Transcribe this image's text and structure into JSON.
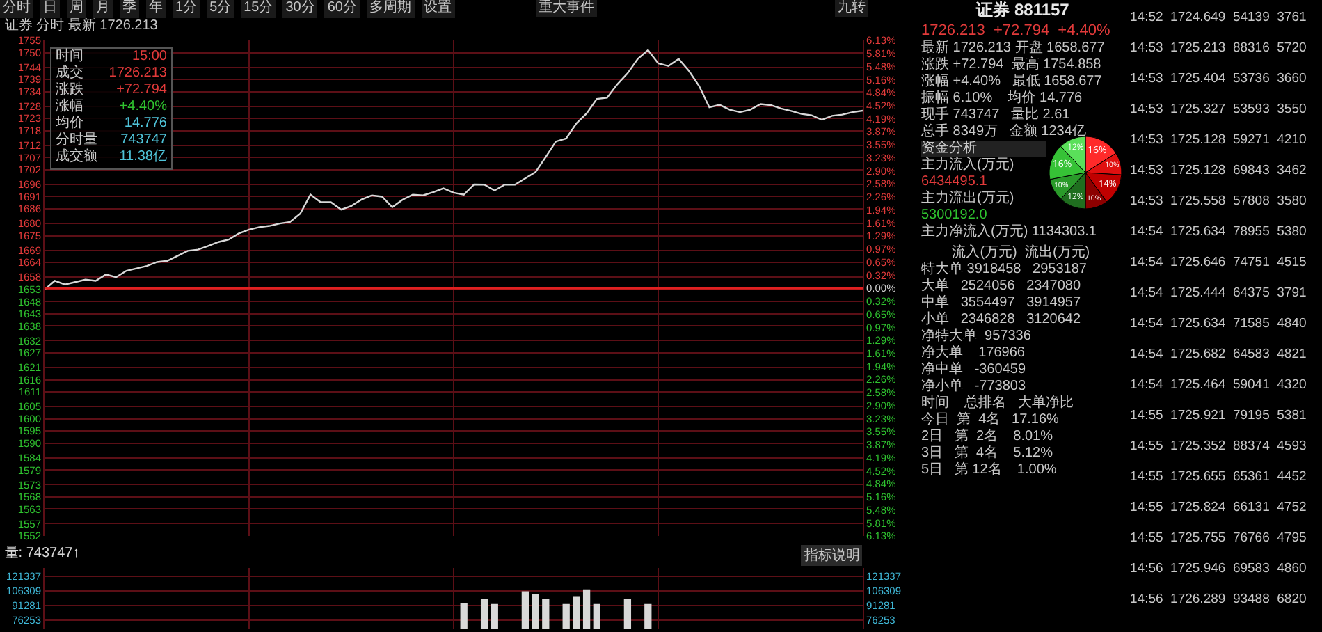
{
  "chart_data": [
    {
      "type": "line",
      "title": "证券 分时 最新 1726.213",
      "categories": [
        null,
        null,
        null,
        null,
        null,
        null,
        null,
        null,
        null,
        null,
        null,
        null,
        null,
        null,
        null,
        null,
        null,
        null,
        null,
        null,
        null,
        null,
        null,
        null,
        null,
        null,
        null,
        null,
        null,
        null,
        null,
        null,
        null,
        null,
        null,
        null,
        null,
        null,
        null,
        null,
        null,
        null,
        null,
        null,
        null,
        null,
        null,
        null,
        null,
        null,
        null,
        null,
        null,
        null,
        null,
        null,
        null,
        null,
        null,
        null,
        null,
        null,
        null,
        null,
        null,
        null,
        null,
        null,
        null,
        null,
        null,
        null,
        null,
        null,
        null,
        null,
        null,
        null,
        null,
        null,
        null
      ],
      "series": [
        {
          "color": "#d8d8d8",
          "values": [
            1652.9,
            1656.5,
            1655.0,
            1656.0,
            1657.0,
            1656.5,
            1659.1,
            1658.0,
            1660.6,
            1661.6,
            1662.6,
            1664.2,
            1664.7,
            1666.7,
            1668.8,
            1669.3,
            1670.8,
            1672.4,
            1673.4,
            1675.9,
            1677.5,
            1678.5,
            1679.0,
            1680.0,
            1680.6,
            1684.0,
            1691.8,
            1688.7,
            1688.7,
            1685.7,
            1687.2,
            1689.8,
            1691.5,
            1691.0,
            1686.7,
            1689.7,
            1691.8,
            1691.5,
            1692.8,
            1694.4,
            1692.6,
            1691.8,
            1696.0,
            1695.9,
            1693.5,
            1695.9,
            1695.9,
            1698.5,
            1701.0,
            1707.2,
            1713.6,
            1714.8,
            1721.0,
            1725.1,
            1731.0,
            1731.5,
            1737.0,
            1741.5,
            1747.4,
            1751.0,
            1745.6,
            1744.5,
            1747.4,
            1742.5,
            1736.3,
            1727.6,
            1728.6,
            1726.6,
            1725.6,
            1726.6,
            1728.9,
            1728.5,
            1727.1,
            1726.1,
            1724.9,
            1724.3,
            1722.5,
            1724.1,
            1724.6,
            1725.6,
            1726.2
          ]
        }
      ],
      "ylim": [
        1552,
        1755
      ],
      "yticks": [
        1552,
        1557,
        1563,
        1568,
        1573,
        1579,
        1584,
        1590,
        1595,
        1600,
        1605,
        1611,
        1616,
        1621,
        1627,
        1632,
        1638,
        1643,
        1648,
        1653,
        1658,
        1664,
        1669,
        1675,
        1680,
        1686,
        1691,
        1696,
        1702,
        1707,
        1712,
        1718,
        1723,
        1728,
        1734,
        1739,
        1744,
        1750,
        1755
      ],
      "y2lim": [
        -6.13,
        6.13
      ],
      "y2ticks": [
        {
          "value": -6.13,
          "label": "6.13%"
        },
        {
          "value": -5.81,
          "label": "5.81%"
        },
        {
          "value": -5.48,
          "label": "5.48%"
        },
        {
          "value": -5.16,
          "label": "5.16%"
        },
        {
          "value": -4.84,
          "label": "4.84%"
        },
        {
          "value": -4.52,
          "label": "4.52%"
        },
        {
          "value": -4.19,
          "label": "4.19%"
        },
        {
          "value": -3.87,
          "label": "3.87%"
        },
        {
          "value": -3.55,
          "label": "3.55%"
        },
        {
          "value": -3.23,
          "label": "3.23%"
        },
        {
          "value": -2.9,
          "label": "2.90%"
        },
        {
          "value": -2.58,
          "label": "2.58%"
        },
        {
          "value": -2.26,
          "label": "2.26%"
        },
        {
          "value": -1.94,
          "label": "1.94%"
        },
        {
          "value": -1.61,
          "label": "1.61%"
        },
        {
          "value": -1.29,
          "label": "1.29%"
        },
        {
          "value": -0.97,
          "label": "0.97%"
        },
        {
          "value": -0.65,
          "label": "0.65%"
        },
        {
          "value": -0.32,
          "label": "0.32%"
        },
        {
          "value": 0,
          "label": "0.00%"
        },
        {
          "value": 0.32,
          "label": "0.32%"
        },
        {
          "value": 0.65,
          "label": "0.65%"
        },
        {
          "value": 0.97,
          "label": "0.97%"
        },
        {
          "value": 1.29,
          "label": "1.29%"
        },
        {
          "value": 1.61,
          "label": "1.61%"
        },
        {
          "value": 1.94,
          "label": "1.94%"
        },
        {
          "value": 2.26,
          "label": "2.26%"
        },
        {
          "value": 2.58,
          "label": "2.58%"
        },
        {
          "value": 2.9,
          "label": "2.90%"
        },
        {
          "value": 3.23,
          "label": "3.23%"
        },
        {
          "value": 3.55,
          "label": "3.55%"
        },
        {
          "value": 3.87,
          "label": "3.87%"
        },
        {
          "value": 4.19,
          "label": "4.19%"
        },
        {
          "value": 4.52,
          "label": "4.52%"
        },
        {
          "value": 4.84,
          "label": "4.84%"
        },
        {
          "value": 5.16,
          "label": "5.16%"
        },
        {
          "value": 5.48,
          "label": "5.48%"
        },
        {
          "value": 5.81,
          "label": "5.81%"
        },
        {
          "value": 6.13,
          "label": "6.13%"
        }
      ],
      "grid": true,
      "ref_lines": [
        {
          "axis": "y",
          "value": 1653.42,
          "color": "#e02020"
        }
      ]
    },
    {
      "type": "bar",
      "title": "量: 743747↑",
      "categories": [
        null,
        null,
        null,
        null,
        null,
        null,
        null,
        null,
        null,
        null,
        null,
        null,
        null,
        null,
        null,
        null,
        null,
        null,
        null,
        null,
        null,
        null,
        null,
        null,
        null,
        null,
        null,
        null,
        null,
        null,
        null,
        null,
        null,
        null,
        null,
        null,
        null,
        null,
        null,
        null,
        null,
        null,
        null,
        null,
        null,
        null,
        null,
        null,
        null,
        null,
        null,
        null,
        null,
        null,
        null,
        null,
        null,
        null,
        null,
        null,
        null,
        null,
        null,
        null,
        null,
        null,
        null,
        null,
        null,
        null,
        null,
        null,
        null,
        null,
        null,
        null,
        null,
        null,
        null,
        null,
        null
      ],
      "values": [
        null,
        null,
        null,
        null,
        null,
        null,
        null,
        null,
        null,
        null,
        null,
        null,
        null,
        null,
        null,
        null,
        null,
        null,
        null,
        null,
        null,
        null,
        null,
        null,
        null,
        null,
        null,
        null,
        null,
        null,
        null,
        null,
        null,
        null,
        null,
        null,
        null,
        null,
        null,
        null,
        null,
        94000,
        null,
        98000,
        93000,
        null,
        null,
        106000,
        103000,
        98000,
        null,
        93000,
        101000,
        108000,
        93000,
        null,
        null,
        98000,
        null,
        93000,
        null,
        null,
        null,
        null,
        null,
        null,
        null,
        null,
        null,
        null,
        null,
        null,
        null,
        null,
        null,
        null,
        null,
        null,
        null,
        null,
        null
      ],
      "color": "#d8d8d8",
      "ylim": [
        67000,
        130000
      ],
      "yticks": [
        76253,
        91281,
        106309,
        121337
      ],
      "y2lim": [
        67000,
        130000
      ],
      "y2ticks": [
        76253,
        91281,
        106309,
        121337
      ],
      "grid": true,
      "annotations": [
        "指标说明"
      ]
    },
    {
      "type": "other",
      "annotations": [
        "分时",
        "日",
        "周",
        "月",
        "季",
        "年",
        "1分",
        "5分",
        "15分",
        "30分",
        "60分",
        "多周期",
        "设置",
        "重大事件",
        "九转"
      ]
    },
    {
      "type": "other",
      "annotations": [
        "时间",
        "15:00",
        "成交",
        "1726.213",
        "涨跌",
        "+72.794",
        "涨幅",
        "+4.40%",
        "均价",
        "14.776",
        "分时量",
        "743747",
        "成交额",
        "11.38亿"
      ]
    },
    {
      "type": "other",
      "annotations": [
        "证券 881157",
        "1726.213  +72.794  +4.40%",
        "最新 1726.213 开盘 1658.677",
        "涨跌 +72.794  最高 1754.858",
        "涨幅 +4.40%   最低 1658.677",
        "振幅 6.10%    均价 14.776",
        "现手 743747   量比 2.61",
        "总手 8349万   金额 1234亿",
        "资金分析",
        "主力流入(万元)",
        "6434495.1",
        "主力流出(万元)",
        "5300192.0",
        "主力净流入(万元) 1134303.1"
      ]
    },
    {
      "type": "pie",
      "categories": [
        null,
        null,
        null,
        null,
        null,
        null,
        null,
        null
      ],
      "values": [
        16,
        10,
        14,
        10,
        12,
        10,
        16,
        12
      ],
      "value_labels": [
        "16%",
        "10%",
        "14%",
        "10%",
        "12%",
        "10%",
        "16%",
        "12%"
      ],
      "colors": [
        "#ff2a2a",
        "#e01010",
        "#c00000",
        "#8c0000",
        "#1f6e1f",
        "#2a9a2a",
        "#36c236",
        "#5ae05a"
      ]
    },
    {
      "type": "other",
      "annotations": [
        "        流入(万元)  流出(万元)",
        "特大单 3918458   2953187",
        "大单   2524056   2347080",
        "中单   3554497   3914957",
        "小单   2346828   3120642",
        "净特大单  957336",
        "净大单    176966",
        "净中单   -360459",
        "净小单   -773803",
        "时间    总排名   大单净比",
        "今日  第  4名   17.16%",
        "2日   第  2名    8.01%",
        "3日   第  4名    5.12%",
        "5日   第 12名    1.00%"
      ]
    },
    {
      "type": "other",
      "annotations": [
        "14:52  1724.649  54139  3761",
        "14:53  1725.213  88316  5720",
        "14:53  1725.404  53736  3660",
        "14:53  1725.327  53593  3550",
        "14:53  1725.128  59271  4210",
        "14:53  1725.128  69843  3462",
        "14:53  1725.558  57808  3580",
        "14:54  1725.634  78955  5380",
        "14:54  1725.646  74751  4515",
        "14:54  1725.444  64375  3791",
        "14:54  1725.634  71585  4840",
        "14:54  1725.682  64583  4821",
        "14:54  1725.464  59041  4320",
        "14:55  1725.921  79195  5381",
        "14:55  1725.352  88374  4593",
        "14:55  1725.655  65361  4452",
        "14:55  1725.824  66131  4752",
        "14:55  1725.755  76766  4795",
        "14:56  1725.946  69583  4860",
        "14:56  1726.289  93488  6820"
      ]
    }
  ]
}
